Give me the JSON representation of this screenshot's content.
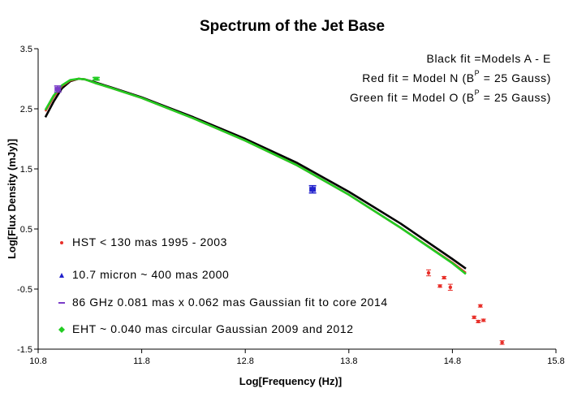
{
  "chart_data": {
    "type": "scatter",
    "title": "Spectrum of the Jet Base",
    "xlabel": "Log[Frequency (Hz)]",
    "ylabel": "Log[Flux Density (mJy)]",
    "xlim": [
      10.8,
      15.8
    ],
    "ylim": [
      -1.5,
      3.5
    ],
    "x_ticks": [
      10.8,
      11.8,
      12.8,
      13.8,
      14.8,
      15.8
    ],
    "x_tick_labels": [
      "10.8",
      "11.8",
      "12.8",
      "13.8",
      "14.8",
      "15.8"
    ],
    "y_ticks": [
      -1.5,
      -0.5,
      0.5,
      1.5,
      2.5,
      3.5
    ],
    "y_tick_labels": [
      "-1.5",
      "-0.5",
      "0.5",
      "1.5",
      "2.5",
      "3.5"
    ],
    "annotations": [
      {
        "pre": "Black fit =Models A - E",
        "sup": "",
        "post": ""
      },
      {
        "pre": "Red fit = Model N (B",
        "sup": "P",
        "post": " = 25  Gauss)"
      },
      {
        "pre": "Green fit =  Model O (B",
        "sup": "P",
        "post": " = 25  Gauss)"
      }
    ],
    "series": [
      {
        "name": "HST  < 130  mas 1995 - 2003",
        "kind": "points",
        "color": "#e8302a",
        "marker": "dot",
        "x": [
          14.57,
          14.68,
          14.72,
          14.78,
          15.01,
          15.05,
          15.07,
          15.1,
          15.28
        ],
        "y": [
          -0.23,
          -0.45,
          -0.31,
          -0.47,
          -0.97,
          -1.04,
          -0.78,
          -1.02,
          -1.39
        ],
        "yerr": [
          0.05,
          0.02,
          0.02,
          0.05,
          0.02,
          0.02,
          0.02,
          0.02,
          0.03
        ]
      },
      {
        "name": "10.7 micron ~ 400 mas 2000",
        "kind": "points",
        "color": "#2222cc",
        "marker": "triangle",
        "x": [
          13.45
        ],
        "y": [
          1.16
        ],
        "yerr": [
          0.06
        ]
      },
      {
        "name": "86 GHz 0.081 mas x  0.062 mas Gaussian fit to core 2014",
        "kind": "points",
        "color": "#7a3cc8",
        "marker": "dash",
        "x": [
          10.99
        ],
        "y": [
          2.83
        ],
        "yerr": [
          0.05
        ]
      },
      {
        "name": "EHT ~ 0.040 mas circular Gaussian 2009 and 2012",
        "kind": "points",
        "color": "#22cc22",
        "marker": "diamond",
        "x": [
          11.36
        ],
        "y": [
          3.0
        ],
        "yerr": [
          0.02
        ]
      },
      {
        "name": "Black fit",
        "kind": "line",
        "color": "#000000",
        "x": [
          10.87,
          10.95,
          11.03,
          11.11,
          11.19,
          11.25,
          11.35,
          11.5,
          11.8,
          12.3,
          12.8,
          13.3,
          13.8,
          14.3,
          14.8,
          14.93
        ],
        "y": [
          2.36,
          2.62,
          2.84,
          2.96,
          3.0,
          2.99,
          2.94,
          2.86,
          2.69,
          2.36,
          2.0,
          1.6,
          1.12,
          0.59,
          0.0,
          -0.16
        ]
      },
      {
        "name": "Red fit",
        "kind": "line",
        "color": "#e8302a",
        "x": [
          10.87,
          10.95,
          11.03,
          11.11,
          11.19,
          11.25,
          11.35,
          11.5,
          11.8,
          12.3,
          12.8,
          13.3,
          13.8,
          14.3,
          14.8,
          14.93
        ],
        "y": [
          2.46,
          2.7,
          2.88,
          2.97,
          3.0,
          2.99,
          2.93,
          2.85,
          2.68,
          2.34,
          1.97,
          1.56,
          1.07,
          0.52,
          -0.06,
          -0.23
        ]
      },
      {
        "name": "Green fit",
        "kind": "line",
        "color": "#22cc22",
        "x": [
          10.87,
          10.95,
          11.03,
          11.11,
          11.19,
          11.25,
          11.35,
          11.5,
          11.8,
          12.3,
          12.8,
          13.3,
          13.8,
          14.3,
          14.8,
          14.93
        ],
        "y": [
          2.48,
          2.72,
          2.89,
          2.98,
          3.0,
          2.99,
          2.93,
          2.85,
          2.68,
          2.34,
          1.97,
          1.56,
          1.07,
          0.52,
          -0.07,
          -0.25
        ]
      }
    ],
    "legend_position": "bottom-left"
  }
}
